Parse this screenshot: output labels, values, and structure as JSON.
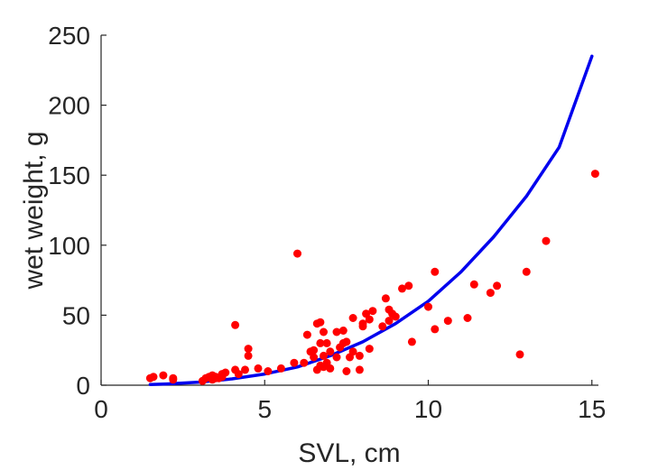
{
  "chart_data": {
    "type": "scatter",
    "title": "",
    "xlabel": "SVL, cm",
    "ylabel": "wet weight, g",
    "xlim": [
      0,
      15.2
    ],
    "ylim": [
      0,
      250
    ],
    "xticks": [
      0,
      5,
      10,
      15
    ],
    "yticks": [
      0,
      50,
      100,
      150,
      200,
      250
    ],
    "grid": false,
    "legend": "none",
    "colors": {
      "points": "#ff0000",
      "fit": "#0000ee",
      "axis": "#262626"
    },
    "series": [
      {
        "kind": "points",
        "x": [
          1.5,
          1.6,
          1.9,
          2.2,
          2.2,
          3.1,
          3.2,
          3.3,
          3.4,
          3.4,
          3.5,
          3.5,
          3.6,
          3.7,
          3.7,
          3.8,
          4.1,
          4.1,
          4.2,
          4.4,
          4.5,
          4.5,
          4.8,
          5.1,
          5.5,
          5.9,
          6.0,
          6.2,
          6.3,
          6.4,
          6.5,
          6.5,
          6.6,
          6.6,
          6.7,
          6.7,
          6.7,
          6.8,
          6.8,
          6.8,
          6.9,
          6.9,
          7.0,
          7.0,
          7.2,
          7.2,
          7.3,
          7.4,
          7.4,
          7.5,
          7.5,
          7.6,
          7.7,
          7.7,
          7.9,
          7.9,
          8.0,
          8.0,
          8.1,
          8.2,
          8.2,
          8.3,
          8.6,
          8.7,
          8.8,
          8.8,
          8.9,
          9.0,
          9.2,
          9.4,
          9.5,
          10.0,
          10.2,
          10.2,
          10.6,
          11.2,
          11.4,
          11.9,
          12.1,
          12.8,
          13.0,
          13.6,
          15.1
        ],
        "y": [
          5,
          6,
          7,
          5,
          4,
          3,
          5,
          6,
          4,
          7,
          5,
          6,
          5,
          8,
          6,
          9,
          43,
          11,
          8,
          11,
          26,
          21,
          12,
          10,
          12,
          16,
          94,
          16,
          36,
          24,
          25,
          20,
          44,
          11,
          45,
          30,
          14,
          21,
          13,
          38,
          16,
          30,
          24,
          12,
          20,
          38,
          27,
          30,
          39,
          31,
          10,
          20,
          48,
          24,
          11,
          21,
          42,
          44,
          51,
          47,
          26,
          53,
          42,
          62,
          54,
          46,
          51,
          49,
          69,
          71,
          31,
          56,
          40,
          81,
          46,
          48,
          72,
          66,
          71,
          22,
          81,
          103,
          151
        ]
      },
      {
        "kind": "fit",
        "x": [
          1.5,
          2,
          3,
          4,
          5,
          6,
          7,
          8,
          9,
          10,
          11,
          12,
          13,
          14,
          15
        ],
        "y": [
          0.5,
          0.9,
          2.2,
          4.5,
          8,
          13,
          21,
          31,
          44,
          60,
          81,
          106,
          135,
          170,
          235
        ]
      }
    ]
  }
}
